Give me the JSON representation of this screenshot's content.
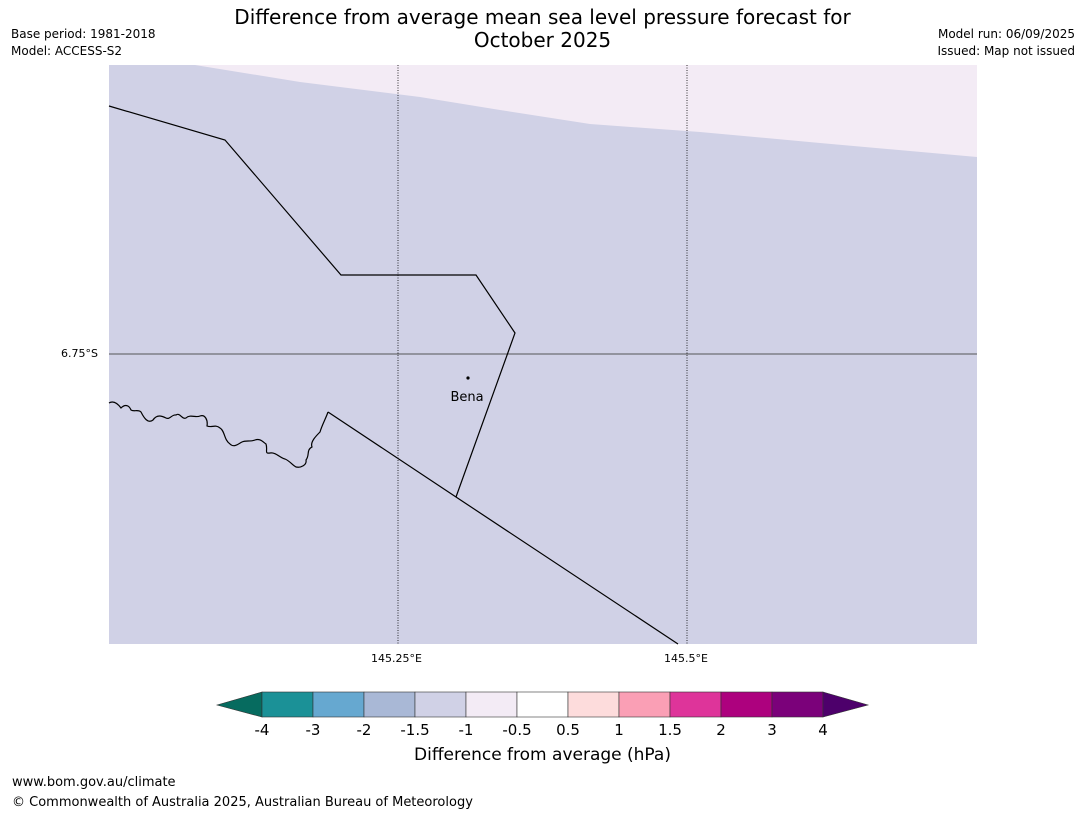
{
  "title": "Difference from average mean sea level pressure forecast for October 2025",
  "title_line1": "Difference from average mean sea level pressure forecast for",
  "title_line2": "October 2025",
  "meta_left": [
    "Base period: 1981-2018",
    "Model: ACCESS-S2"
  ],
  "meta_right": [
    "Model run: 06/09/2025",
    "Issued: Map not issued"
  ],
  "map": {
    "lat_label": "6.75°S",
    "lon_labels": [
      "145.25°E",
      "145.5°E"
    ],
    "places": [
      {
        "name": "Bena"
      }
    ],
    "fill_colors": {
      "-1.5 to -1": "#d0d1e6",
      "-1 to -0.5": "#f3ebf5"
    }
  },
  "colorbar": {
    "title": "Difference from average (hPa)",
    "ticks": [
      "-4",
      "-3",
      "-2",
      "-1.5",
      "-1",
      "-0.5",
      "0.5",
      "1",
      "1.5",
      "2",
      "3",
      "4"
    ],
    "colors": [
      "#066b5f",
      "#1b9197",
      "#66a8d0",
      "#a9b8d6",
      "#d0d1e6",
      "#f3ebf5",
      "#ffffff",
      "#fddcdc",
      "#fa9fb5",
      "#de349a",
      "#ad017e",
      "#7b017a",
      "#4d006b"
    ]
  },
  "footer": {
    "url": "www.bom.gov.au/climate",
    "copyright": "© Commonwealth of Australia 2025, Australian Bureau of Meteorology"
  }
}
